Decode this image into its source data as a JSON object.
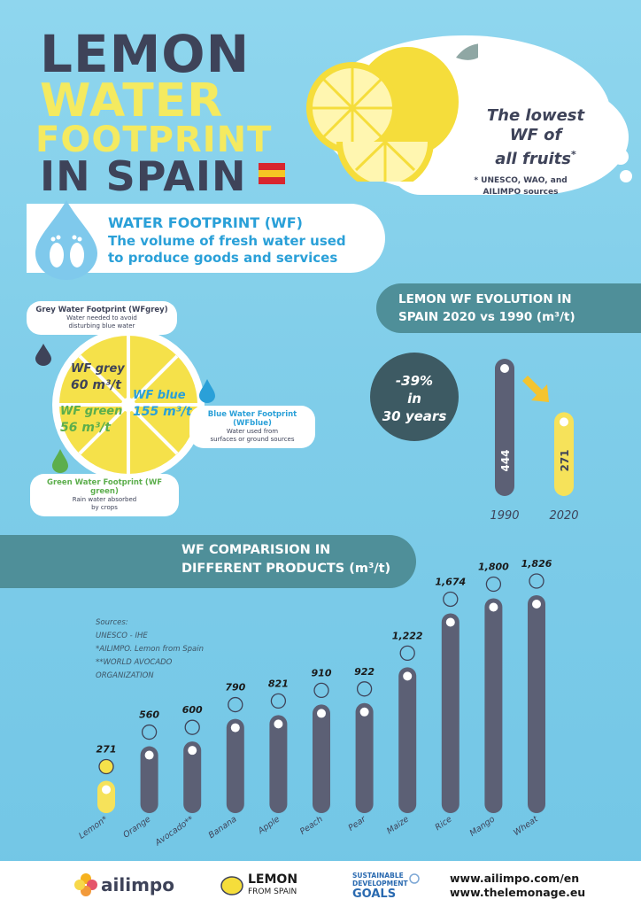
{
  "title": {
    "line1": "LEMON",
    "line2": "WATER",
    "line3": "FOOTPRINT",
    "line4": "IN SPAIN"
  },
  "colors": {
    "dark": "#3e4359",
    "yellow": "#f4ea60",
    "accent_blue": "#2aa0d8",
    "teal": "#4f8f99",
    "bar": "#5c6075",
    "lemon_bar": "#f6e25a"
  },
  "badge": {
    "text": "The lowest WF of all fruits*",
    "line1": "The lowest",
    "line2": "WF of",
    "line3": "all fruits",
    "mark": "*"
  },
  "sources_top": {
    "line1": "* UNESCO, WAO, and",
    "line2": "AILIMPO sources"
  },
  "definition": {
    "heading": "WATER FOOTPRINT (WF)",
    "line1": "The volume of fresh water used",
    "line2": "to produce goods and services",
    "icon": "water-drop-footprints-icon"
  },
  "composition": {
    "grey": {
      "label": "WF grey",
      "value": "60 m³/t",
      "title": "Grey Water Footprint (WFgrey)",
      "desc1": "Water needed to avoid",
      "desc2": "disturbing blue water",
      "color": "#3e4359"
    },
    "blue": {
      "label": "WF blue",
      "value": "155 m³/t",
      "title": "Blue Water Footprint (WFblue)",
      "desc1": "Water used from",
      "desc2": "surfaces or ground sources",
      "color": "#2aa0d8"
    },
    "green": {
      "label": "WF green",
      "value": "56 m³/t",
      "title": "Green Water Footprint (WF green)",
      "desc1": "Rain water absorbed",
      "desc2": "by crops",
      "color": "#5cae4c"
    }
  },
  "evolution": {
    "title_line1": "LEMON WF EVOLUTION IN",
    "title_line2": "SPAIN 2020 vs 1990 (m³/t)",
    "change_line1": "-39%",
    "change_line2": "in",
    "change_line3": "30 years"
  },
  "comparison": {
    "title_line1": "WF COMPARISION IN",
    "title_line2": "DIFFERENT PRODUCTS (m³/t)"
  },
  "sources_left": {
    "line1": "Sources:",
    "line2": "UNESCO - IHE",
    "line3": "*AILIMPO. Lemon from Spain",
    "line4": "**WORLD AVOCADO",
    "line5": "ORGANIZATION"
  },
  "chart_data": [
    {
      "type": "bar",
      "categories": [
        "1990",
        "2020"
      ],
      "values": [
        444,
        271
      ],
      "value_labels": [
        "444",
        "271"
      ],
      "title": "LEMON WF EVOLUTION IN SPAIN 2020 vs 1990 (m³/t)",
      "ylim": [
        0,
        444
      ]
    },
    {
      "type": "bar",
      "categories": [
        "Lemon*",
        "Orange",
        "Avocado**",
        "Banana",
        "Apple",
        "Peach",
        "Pear",
        "Maize",
        "Rice",
        "Mango",
        "Wheat"
      ],
      "values": [
        271,
        560,
        600,
        790,
        821,
        910,
        922,
        1222,
        1674,
        1800,
        1826
      ],
      "value_labels": [
        "271",
        "560",
        "600",
        "790",
        "821",
        "910",
        "922",
        "1,222",
        "1,674",
        "1,800",
        "1,826"
      ],
      "icons": [
        "lemon-icon",
        "orange-icon",
        "avocado-icon",
        "banana-icon",
        "apple-icon",
        "peach-icon",
        "pear-icon",
        "maize-icon",
        "rice-icon",
        "mango-icon",
        "wheat-icon"
      ],
      "title": "WF COMPARISION IN DIFFERENT PRODUCTS (m³/t)",
      "ylim": [
        0,
        1826
      ]
    }
  ],
  "footer": {
    "ailimpo": "ailimpo",
    "lemon_brand": "LEMON",
    "lemon_sub": "FROM SPAIN",
    "sdg_line1": "SUSTAINABLE",
    "sdg_line2": "DEVELOPMENT",
    "sdg_line3": "GOALS",
    "url1": "www.ailimpo.com/en",
    "url2": "www.thelemonage.eu"
  }
}
